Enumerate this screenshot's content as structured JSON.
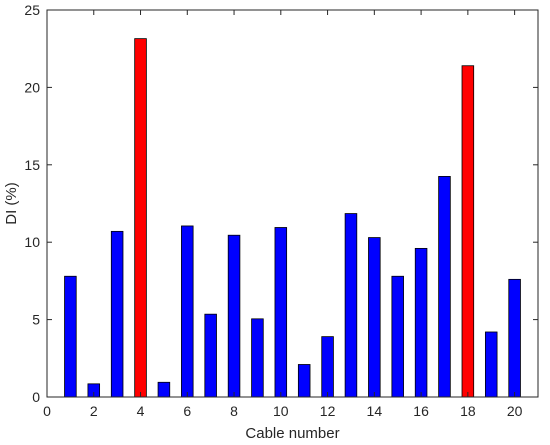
{
  "chart_data": {
    "type": "bar",
    "xlabel": "Cable number",
    "ylabel": "DI (%)",
    "xlim": [
      0,
      21
    ],
    "ylim": [
      0,
      25
    ],
    "x_ticks": [
      "0",
      "2",
      "4",
      "6",
      "8",
      "10",
      "12",
      "14",
      "16",
      "18",
      "20"
    ],
    "y_ticks": [
      "0",
      "5",
      "10",
      "15",
      "20",
      "25"
    ],
    "grid": false,
    "categories": [
      1,
      2,
      3,
      4,
      5,
      6,
      7,
      8,
      9,
      10,
      11,
      12,
      13,
      14,
      15,
      16,
      17,
      18,
      19,
      20
    ],
    "values": [
      7.8,
      0.85,
      10.7,
      23.15,
      0.95,
      11.05,
      5.35,
      10.45,
      5.05,
      10.95,
      2.1,
      3.9,
      11.85,
      10.3,
      7.8,
      9.6,
      14.25,
      21.4,
      4.2,
      7.6
    ],
    "colors": {
      "normal": "#0000ff",
      "highlight": "#ff0000",
      "highlighted_cables": [
        4,
        18
      ],
      "edge": "#000000",
      "axis": "#262626"
    }
  }
}
